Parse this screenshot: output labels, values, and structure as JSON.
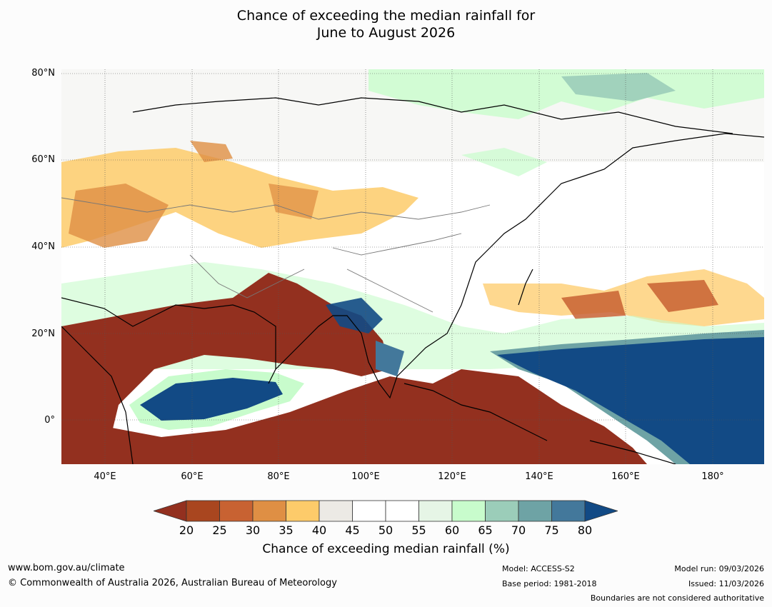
{
  "title": {
    "line1": "Chance of exceeding the median rainfall for",
    "line2": "June to August 2026"
  },
  "map": {
    "latitude_labels": [
      "80°N",
      "60°N",
      "40°N",
      "20°N",
      "0°"
    ],
    "longitude_labels": [
      "40°E",
      "60°E",
      "80°E",
      "100°E",
      "120°E",
      "140°E",
      "160°E",
      "180°"
    ]
  },
  "legend": {
    "ticks": [
      "20",
      "25",
      "30",
      "35",
      "40",
      "45",
      "50",
      "55",
      "60",
      "65",
      "70",
      "75",
      "80"
    ],
    "colors": [
      "#93301f",
      "#a9461f",
      "#c86232",
      "#df8f44",
      "#fdcb6a",
      "#eceae5",
      "#ffffff",
      "#ffffff",
      "#e6f5e6",
      "#c8fccc",
      "#9bcdb9",
      "#6ea3a5",
      "#43789b",
      "#124a85"
    ],
    "label": "Chance of exceeding median rainfall (%)"
  },
  "footer": {
    "website": "www.bom.gov.au/climate",
    "copyright": "© Commonwealth of Australia 2026, Australian Bureau of Meteorology",
    "model": "Model: ACCESS-S2",
    "base_period": "Base period: 1981-2018",
    "model_run": "Model run: 09/03/2026",
    "issued": "Issued: 11/03/2026",
    "disclaimer": "Boundaries are not considered authoritative"
  }
}
